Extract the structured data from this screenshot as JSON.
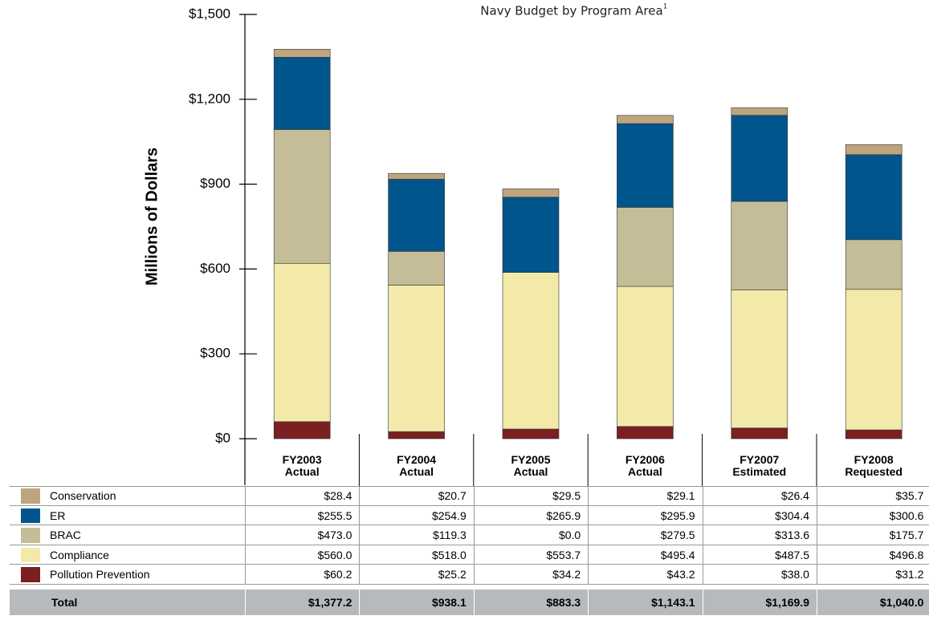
{
  "chart_data": {
    "type": "stacked_bar",
    "subtitle": "Navy Budget by Program Area",
    "footnote_marker": "1",
    "ylabel": "Millions of Dollars",
    "categories": [
      "FY2003 Actual",
      "FY2004 Actual",
      "FY2005 Actual",
      "FY2006 Actual",
      "FY2007 Estimated",
      "FY2008 Requested"
    ],
    "ylim": [
      0,
      1500
    ],
    "yticks": [
      {
        "value": 0,
        "label": "$0"
      },
      {
        "value": 300,
        "label": "$300"
      },
      {
        "value": 600,
        "label": "$600"
      },
      {
        "value": 900,
        "label": "$900"
      },
      {
        "value": 1200,
        "label": "$1,200"
      },
      {
        "value": 1500,
        "label": "$1,500"
      }
    ],
    "series": [
      {
        "name": "Conservation",
        "color": "#bfa57e",
        "values": [
          28.4,
          20.7,
          29.5,
          29.1,
          26.4,
          35.7
        ],
        "value_labels": [
          "$28.4",
          "$20.7",
          "$29.5",
          "$29.1",
          "$26.4",
          "$35.7"
        ]
      },
      {
        "name": "ER",
        "color": "#00558c",
        "values": [
          255.5,
          254.9,
          265.9,
          295.9,
          304.4,
          300.6
        ],
        "value_labels": [
          "$255.5",
          "$254.9",
          "$265.9",
          "$295.9",
          "$304.4",
          "$300.6"
        ]
      },
      {
        "name": "BRAC",
        "color": "#c5bd98",
        "values": [
          473.0,
          119.3,
          0.0,
          279.5,
          313.6,
          175.7
        ],
        "value_labels": [
          "$473.0",
          "$119.3",
          "$0.0",
          "$279.5",
          "$313.6",
          "$175.7"
        ]
      },
      {
        "name": "Compliance",
        "color": "#f3eaa9",
        "values": [
          560.0,
          518.0,
          553.7,
          495.4,
          487.5,
          496.8
        ],
        "value_labels": [
          "$560.0",
          "$518.0",
          "$553.7",
          "$495.4",
          "$487.5",
          "$496.8"
        ]
      },
      {
        "name": "Pollution Prevention",
        "color": "#7b2022",
        "values": [
          60.2,
          25.2,
          34.2,
          43.2,
          38.0,
          31.2
        ],
        "value_labels": [
          "$60.2",
          "$25.2",
          "$34.2",
          "$43.2",
          "$38.0",
          "$31.2"
        ]
      }
    ],
    "total": {
      "name": "Total",
      "value_labels": [
        "$1,377.2",
        "$938.1",
        "$883.3",
        "$1,143.1",
        "$1,169.9",
        "$1,040.0"
      ]
    }
  }
}
